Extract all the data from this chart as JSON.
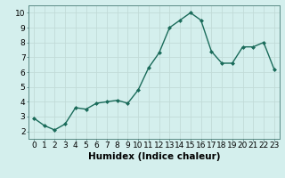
{
  "x": [
    0,
    1,
    2,
    3,
    4,
    5,
    6,
    7,
    8,
    9,
    10,
    11,
    12,
    13,
    14,
    15,
    16,
    17,
    18,
    19,
    20,
    21,
    22,
    23
  ],
  "y": [
    2.9,
    2.4,
    2.1,
    2.5,
    3.6,
    3.5,
    3.9,
    4.0,
    4.1,
    3.9,
    4.8,
    6.3,
    7.3,
    9.0,
    9.5,
    10.0,
    9.5,
    7.4,
    6.6,
    6.6,
    7.7,
    7.7,
    8.0,
    6.2
  ],
  "line_color": "#1a6b5a",
  "marker": "D",
  "marker_size": 2.0,
  "bg_color": "#d4efed",
  "grid_color": "#c2dbd8",
  "xlabel": "Humidex (Indice chaleur)",
  "ylim": [
    1.5,
    10.5
  ],
  "xlim": [
    -0.5,
    23.5
  ],
  "yticks": [
    2,
    3,
    4,
    5,
    6,
    7,
    8,
    9,
    10
  ],
  "xticks": [
    0,
    1,
    2,
    3,
    4,
    5,
    6,
    7,
    8,
    9,
    10,
    11,
    12,
    13,
    14,
    15,
    16,
    17,
    18,
    19,
    20,
    21,
    22,
    23
  ],
  "xlabel_fontsize": 7.5,
  "tick_fontsize": 6.5,
  "line_width": 1.0
}
